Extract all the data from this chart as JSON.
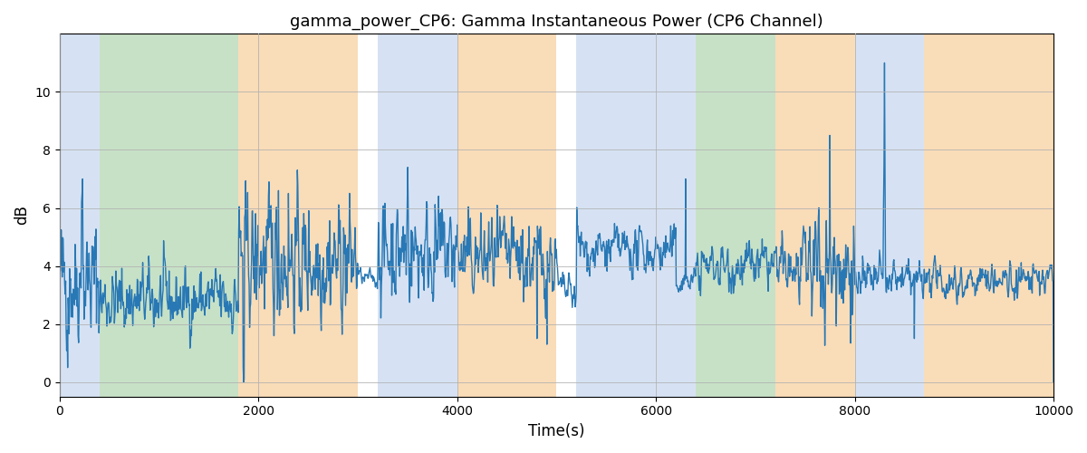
{
  "title": "gamma_power_CP6: Gamma Instantaneous Power (CP6 Channel)",
  "xlabel": "Time(s)",
  "ylabel": "dB",
  "xlim": [
    0,
    10000
  ],
  "ylim": [
    -0.5,
    12
  ],
  "yticks": [
    0,
    2,
    4,
    6,
    8,
    10
  ],
  "xticks": [
    0,
    2000,
    4000,
    6000,
    8000,
    10000
  ],
  "line_color": "#2878b5",
  "line_width": 1.0,
  "background_color": "#ffffff",
  "grid_color": "#b0b0b0",
  "bands": [
    {
      "start": 0,
      "end": 400,
      "color": "#aec6e8",
      "alpha": 0.5
    },
    {
      "start": 400,
      "end": 1800,
      "color": "#90c490",
      "alpha": 0.5
    },
    {
      "start": 1800,
      "end": 3000,
      "color": "#f5c58a",
      "alpha": 0.6
    },
    {
      "start": 3000,
      "end": 3200,
      "color": "#ffffff",
      "alpha": 1.0
    },
    {
      "start": 3200,
      "end": 4000,
      "color": "#aec6e8",
      "alpha": 0.5
    },
    {
      "start": 4000,
      "end": 5000,
      "color": "#f5c58a",
      "alpha": 0.6
    },
    {
      "start": 5000,
      "end": 5200,
      "color": "#ffffff",
      "alpha": 1.0
    },
    {
      "start": 5200,
      "end": 6200,
      "color": "#aec6e8",
      "alpha": 0.5
    },
    {
      "start": 6200,
      "end": 6400,
      "color": "#aec6e8",
      "alpha": 0.5
    },
    {
      "start": 6400,
      "end": 7200,
      "color": "#90c490",
      "alpha": 0.5
    },
    {
      "start": 7200,
      "end": 7500,
      "color": "#f5c58a",
      "alpha": 0.6
    },
    {
      "start": 7500,
      "end": 8000,
      "color": "#f5c58a",
      "alpha": 0.6
    },
    {
      "start": 8000,
      "end": 8700,
      "color": "#aec6e8",
      "alpha": 0.5
    },
    {
      "start": 8700,
      "end": 10000,
      "color": "#f5c58a",
      "alpha": 0.6
    }
  ],
  "seed": 42,
  "n_points": 2000
}
